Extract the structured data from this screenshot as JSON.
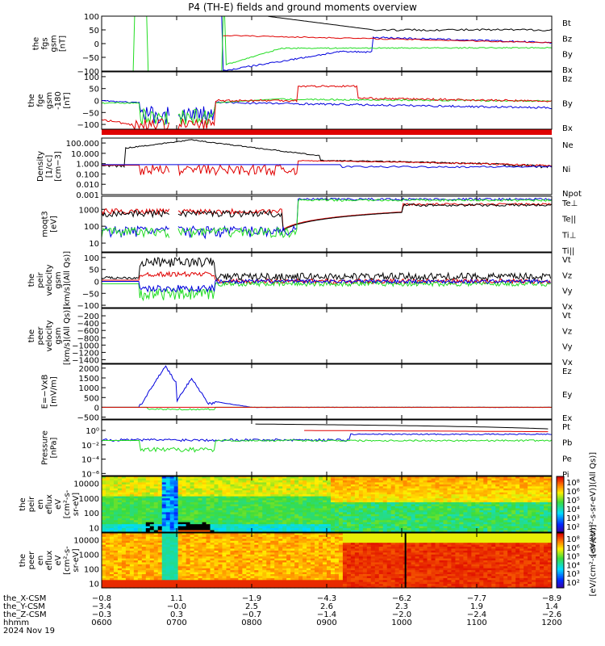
{
  "title": "P4 (TH-E) fields and ground moments overview",
  "date": "2024 Nov 19",
  "colors": {
    "black": "#000000",
    "red": "#e00000",
    "green": "#22dd22",
    "blue": "#0000dd"
  },
  "chart_data": [
    {
      "type": "line",
      "ylabel": [
        "the",
        "fgs",
        "gsm",
        "[nT]"
      ],
      "yticks": [
        "100",
        "50",
        "0",
        "−50",
        "−100"
      ],
      "ylim": [
        -100,
        100
      ],
      "series": [
        {
          "name": "Bt",
          "color": "black"
        },
        {
          "name": "Bz",
          "color": "red"
        },
        {
          "name": "By",
          "color": "green"
        },
        {
          "name": "Bx",
          "color": "blue"
        }
      ]
    },
    {
      "type": "line",
      "ylabel": [
        "the",
        "fge",
        "gsm",
        "-180",
        "[nT]"
      ],
      "yticks": [
        "100",
        "50",
        "0",
        "−50",
        "−100"
      ],
      "ylim": [
        -120,
        120
      ],
      "series": [
        {
          "name": "Bz",
          "color": "red"
        },
        {
          "name": "By",
          "color": "green"
        },
        {
          "name": "Bx",
          "color": "blue"
        }
      ]
    },
    {
      "type": "line",
      "log": true,
      "ylabel": [
        "Density",
        "[1/cc]",
        "[cm−3]"
      ],
      "yticks": [
        "100.000",
        "10.000",
        "1.000",
        "0.100",
        "0.010",
        "0.001"
      ],
      "ylim": [
        0.001,
        300
      ],
      "series": [
        {
          "name": "Ne",
          "color": "red"
        },
        {
          "name": "Ni",
          "color": "black"
        },
        {
          "name": "Npot",
          "color": "blue"
        }
      ]
    },
    {
      "type": "line",
      "log": true,
      "ylabel": [
        "moqt3",
        "[eV]"
      ],
      "yticks": [
        "1000",
        "100",
        "10"
      ],
      "ylim": [
        3,
        6000
      ],
      "series": [
        {
          "name": "Te⊥",
          "color": "red"
        },
        {
          "name": "Te||",
          "color": "black"
        },
        {
          "name": "Ti⊥",
          "color": "blue"
        },
        {
          "name": "Ti||",
          "color": "green"
        }
      ]
    },
    {
      "type": "line",
      "ylabel": [
        "the",
        "peir",
        "velocity",
        "gsm",
        "[km/s](All Qs)]"
      ],
      "yticks": [
        "100",
        "50",
        "0",
        "−50",
        "−100"
      ],
      "ylim": [
        -110,
        120
      ],
      "series": [
        {
          "name": "Vt",
          "color": "black"
        },
        {
          "name": "Vz",
          "color": "red"
        },
        {
          "name": "Vy",
          "color": "green"
        },
        {
          "name": "Vx",
          "color": "blue"
        }
      ]
    },
    {
      "type": "line",
      "ylabel": [
        "the",
        "peer",
        "velocity",
        "gsm",
        "[km/s](All Qs)]"
      ],
      "yticks": [
        "−200",
        "−400",
        "−600",
        "−800",
        "−1000",
        "−1200",
        "−1400"
      ],
      "ylim": [
        -1500,
        0
      ],
      "series": [
        {
          "name": "Vt",
          "color": "black"
        },
        {
          "name": "Vz",
          "color": "red"
        },
        {
          "name": "Vy",
          "color": "green"
        },
        {
          "name": "Vx",
          "color": "blue"
        }
      ]
    },
    {
      "type": "line",
      "ylabel": [
        "E=−VxB",
        "[mV/m]"
      ],
      "yticks": [
        "2000",
        "1500",
        "1000",
        "500",
        "0",
        "−500"
      ],
      "ylim": [
        -600,
        2200
      ],
      "series": [
        {
          "name": "Ez",
          "color": "red"
        },
        {
          "name": "Ey",
          "color": "green"
        },
        {
          "name": "Ex",
          "color": "blue"
        }
      ]
    },
    {
      "type": "line",
      "log": true,
      "ylabel": [
        "Pressure",
        "[nPa]"
      ],
      "yticks": [
        "10⁰",
        "10⁻²",
        "10⁻⁴",
        "10⁻⁶"
      ],
      "ylim": [
        5e-07,
        30
      ],
      "series": [
        {
          "name": "Pt",
          "color": "black"
        },
        {
          "name": "Pb",
          "color": "red"
        },
        {
          "name": "Pe",
          "color": "green"
        },
        {
          "name": "Pi",
          "color": "blue"
        }
      ]
    },
    {
      "type": "heatmap",
      "log": true,
      "ylabel": [
        "the",
        "peir",
        "en",
        "eflux",
        "eV",
        "[cm²-s-",
        "sr-eV]"
      ],
      "yticks": [
        "10000",
        "1000",
        "100",
        "10"
      ],
      "ylim": [
        5,
        30000
      ],
      "colorbar": {
        "ticks": [
          "10⁸",
          "10⁶",
          "10⁵",
          "10⁴",
          "10³",
          "10²"
        ],
        "label": "[eV/(cm²-s-sr-eV)](All Qs)]"
      }
    },
    {
      "type": "heatmap",
      "log": true,
      "ylabel": [
        "the",
        "peer",
        "en",
        "eflux",
        "eV",
        "[cm²-s-",
        "sr-eV]"
      ],
      "yticks": [
        "10000",
        "1000",
        "100",
        "10"
      ],
      "ylim": [
        5,
        30000
      ],
      "colorbar": {
        "ticks": [
          "10⁸",
          "10⁶",
          "10⁵",
          "10⁴",
          "10³",
          "10²"
        ],
        "label": "[eV/(cm²-s-sr-eV)]"
      }
    }
  ],
  "xaxis": {
    "rows": [
      {
        "label": "the_X-CSM",
        "values": [
          "−0.8",
          "1.1",
          "−1.9",
          "−4.3",
          "−6.2",
          "−7.7",
          "−8.9"
        ]
      },
      {
        "label": "the_Y-CSM",
        "values": [
          "−3.4",
          "−0.0",
          "2.5",
          "2.6",
          "2.3",
          "1.9",
          "1.4"
        ]
      },
      {
        "label": "the_Z-CSM",
        "values": [
          "−0.3",
          "0.3",
          "−0.7",
          "−1.4",
          "−2.0",
          "−2.4",
          "−2.6"
        ]
      },
      {
        "label": "hhmm",
        "values": [
          "0600",
          "0700",
          "0800",
          "0900",
          "1000",
          "1100",
          "1200"
        ]
      }
    ],
    "hours": [
      6,
      7,
      8,
      9,
      10,
      11,
      12
    ]
  }
}
